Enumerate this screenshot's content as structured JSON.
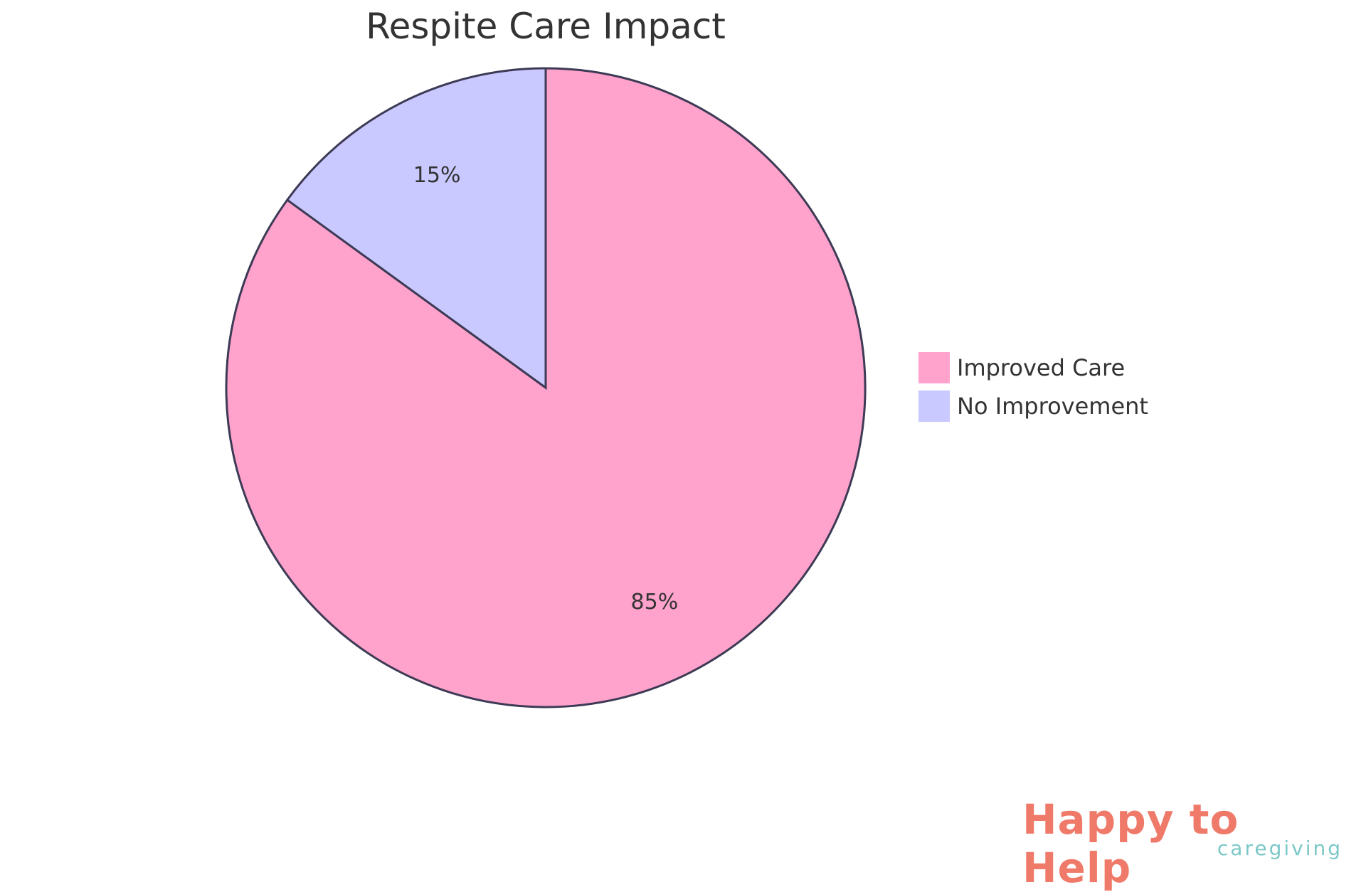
{
  "chart_data": {
    "type": "pie",
    "title": "Respite Care Impact",
    "slices": [
      {
        "label": "Improved Care",
        "value": 85,
        "display": "85%",
        "color": "#FFA2CC"
      },
      {
        "label": "No Improvement",
        "value": 15,
        "display": "15%",
        "color": "#C9C9FF"
      }
    ],
    "legend_position": "right",
    "stroke_color": "#3d3a55"
  },
  "logo": {
    "main": "Happy to Help",
    "sub": "caregiving",
    "main_color": "#F07A6A",
    "accent_color": "#7CC8C8"
  }
}
